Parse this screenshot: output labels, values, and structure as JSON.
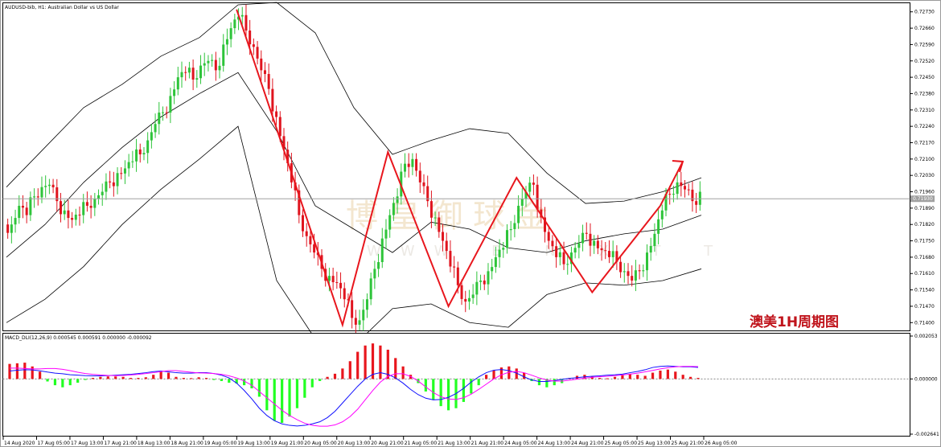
{
  "header": {
    "symbol_line": "AUDUSD-bib, H1:  Australian Dollar vs US Dollar",
    "macd_line": "MACD_DLI(12,26,9) 0.000545 0.000591 0.000000 -0.000092"
  },
  "annotation": "澳美1H周期图",
  "watermark": {
    "brand": "博 皇 御 球 金",
    "letters": "WWW B N X T T"
  },
  "colors": {
    "bull": "#2ec43a",
    "bear": "#e0141e",
    "zigzag": "#e8161d",
    "bands": "#000000",
    "macd_line": "#1010ff",
    "signal_line": "#ff00ff",
    "hist_pos": "#e8161d",
    "hist_neg": "#22ff22"
  },
  "current_price_label": "0.71930",
  "chart_data": [
    {
      "type": "candlestick",
      "title": "AUDUSD-bib, H1:  Australian Dollar vs US Dollar",
      "y_ticks": [
        "0.72730",
        "0.72660",
        "0.72590",
        "0.72520",
        "0.72450",
        "0.72380",
        "0.72310",
        "0.72240",
        "0.72170",
        "0.72100",
        "0.72030",
        "0.71960",
        "0.71890",
        "0.71820",
        "0.71750",
        "0.71680",
        "0.71610",
        "0.71540",
        "0.71470",
        "0.71400"
      ],
      "ylim": [
        0.7137,
        0.7276
      ],
      "current_price": 0.7193,
      "x_ticks": [
        "14 Aug 2020",
        "17 Aug 05:00",
        "17 Aug 13:00",
        "17 Aug 21:00",
        "18 Aug 13:00",
        "18 Aug 21:00",
        "19 Aug 05:00",
        "19 Aug 13:00",
        "19 Aug 21:00",
        "20 Aug 05:00",
        "20 Aug 13:00",
        "20 Aug 21:00",
        "21 Aug 05:00",
        "21 Aug 13:00",
        "21 Aug 21:00",
        "24 Aug 05:00",
        "24 Aug 13:00",
        "24 Aug 21:00",
        "25 Aug 05:00",
        "25 Aug 13:00",
        "25 Aug 21:00",
        "26 Aug 05:00"
      ],
      "path_close": [
        0.7182,
        0.719,
        0.7186,
        0.7194,
        0.7198,
        0.7199,
        0.7192,
        0.7188,
        0.7184,
        0.7186,
        0.719,
        0.7193,
        0.7196,
        0.72,
        0.7204,
        0.7206,
        0.7209,
        0.7212,
        0.7218,
        0.7225,
        0.723,
        0.7237,
        0.7245,
        0.7247,
        0.7244,
        0.725,
        0.7252,
        0.7248,
        0.7259,
        0.7266,
        0.7271,
        0.7265,
        0.7258,
        0.7248,
        0.724,
        0.7228,
        0.7214,
        0.72,
        0.7186,
        0.7177,
        0.717,
        0.7163,
        0.716,
        0.7157,
        0.715,
        0.7142,
        0.7141,
        0.715,
        0.7163,
        0.7176,
        0.7186,
        0.7194,
        0.7208,
        0.721,
        0.72,
        0.7192,
        0.7185,
        0.7175,
        0.7164,
        0.7156,
        0.7149,
        0.7152,
        0.7158,
        0.7162,
        0.7168,
        0.7172,
        0.718,
        0.719,
        0.7196,
        0.7199,
        0.7185,
        0.7175,
        0.7168,
        0.7165,
        0.717,
        0.7174,
        0.7178,
        0.7175,
        0.7171,
        0.7168,
        0.7166,
        0.7162,
        0.7158,
        0.7162,
        0.717,
        0.7178,
        0.7188,
        0.7195,
        0.72,
        0.7197,
        0.7192,
        0.7196
      ],
      "bands": [
        {
          "name": "upper",
          "values": [
            0.7198,
            0.7215,
            0.7232,
            0.7242,
            0.7254,
            0.7262,
            0.7276,
            0.7277,
            0.7264,
            0.7232,
            0.7212,
            0.7218,
            0.7223,
            0.7221,
            0.7204,
            0.7191,
            0.7192,
            0.7196,
            0.7202
          ]
        },
        {
          "name": "middle",
          "values": [
            0.7168,
            0.7182,
            0.72,
            0.7215,
            0.7228,
            0.7238,
            0.7247,
            0.7222,
            0.719,
            0.718,
            0.717,
            0.7183,
            0.718,
            0.7172,
            0.717,
            0.7175,
            0.7178,
            0.718,
            0.7186
          ]
        },
        {
          "name": "lower",
          "values": [
            0.714,
            0.715,
            0.7164,
            0.7182,
            0.7197,
            0.721,
            0.7224,
            0.7158,
            0.7133,
            0.713,
            0.7146,
            0.7148,
            0.714,
            0.7138,
            0.7152,
            0.7157,
            0.7156,
            0.7158,
            0.7163
          ]
        }
      ],
      "zigzag": [
        [
          30,
          0.7274
        ],
        [
          44,
          0.7139
        ],
        [
          50,
          0.7213
        ],
        [
          58,
          0.7147
        ],
        [
          67,
          0.7202
        ],
        [
          77,
          0.7153
        ],
        [
          86,
          0.719
        ]
      ]
    },
    {
      "type": "macd",
      "title": "MACD_DLI(12,26,9) 0.000545 0.000591 0.000000 -0.000092",
      "y_ticks": [
        "0.002053",
        "0.000000",
        "-0.002641"
      ],
      "ylim": [
        -0.002641,
        0.002053
      ],
      "histogram": [
        0.00072,
        0.00075,
        0.00078,
        0.0006,
        0.00035,
        -0.00012,
        -0.0003,
        -0.0004,
        -0.0003,
        -0.00018,
        -5e-05,
        5e-05,
        0.0001,
        0.00012,
        0.00012,
        0.0001,
        5e-05,
        5e-05,
        8e-05,
        0.0002,
        0.00038,
        0.0003,
        0.0001,
        5e-05,
        4e-05,
        8e-05,
        5e-05,
        -5e-05,
        -0.0001,
        -0.00018,
        -0.00022,
        -0.0003,
        -0.00045,
        -0.00085,
        -0.0015,
        -0.002,
        -0.0021,
        -0.0018,
        -0.0014,
        -0.0009,
        -0.0004,
        -0.0001,
        0.0001,
        0.00025,
        0.0005,
        0.00085,
        0.0013,
        0.0016,
        0.0017,
        0.0016,
        0.0014,
        0.001,
        0.0006,
        0.0002,
        -0.0002,
        -0.0006,
        -0.001,
        -0.0013,
        -0.0015,
        -0.0014,
        -0.0011,
        -0.0007,
        -0.0003,
        0.0002,
        0.0004,
        0.00055,
        0.0006,
        0.0005,
        0.0003,
        -0.0001,
        -0.0003,
        -0.0004,
        -0.0003,
        -0.0002,
        5e-05,
        0.00015,
        0.0002,
        0.00012,
        5e-05,
        3e-05,
        0.0001,
        0.00018,
        0.00025,
        0.0002,
        0.00015,
        0.0003,
        0.0004,
        0.00045,
        0.00035,
        0.0002,
        0.0001,
        5e-05
      ],
      "macd": [
        0.00038,
        0.00042,
        0.00044,
        0.00043,
        0.00039,
        0.00033,
        0.00028,
        0.00025,
        0.0002,
        0.00018,
        0.00016,
        0.00015,
        0.00015,
        0.00016,
        0.00018,
        0.0002,
        0.00022,
        0.00026,
        0.0003,
        0.00035,
        0.00038,
        0.00034,
        0.0003,
        0.00028,
        0.00028,
        0.0003,
        0.0003,
        0.00026,
        0.00018,
        5e-05,
        -0.0002,
        -0.00055,
        -0.00095,
        -0.0014,
        -0.00175,
        -0.002,
        -0.00215,
        -0.00222,
        -0.00225,
        -0.00222,
        -0.00215,
        -0.00205,
        -0.00185,
        -0.00155,
        -0.00115,
        -0.00075,
        -0.00035,
        0.0,
        0.00022,
        0.0003,
        0.00022,
        5e-05,
        -0.0002,
        -0.0005,
        -0.00075,
        -0.00092,
        -0.001,
        -0.00098,
        -0.00088,
        -0.0007,
        -0.00045,
        -0.00015,
        0.0001,
        0.0003,
        0.00042,
        0.00045,
        0.0004,
        0.00028,
        0.0001,
        -5e-05,
        -0.00012,
        -0.00012,
        -8e-05,
        -2e-05,
        3e-05,
        6e-05,
        0.0001,
        0.00013,
        0.00015,
        0.00018,
        0.0002,
        0.00023,
        0.0003,
        0.00036,
        0.00044,
        0.00055,
        0.0006,
        0.00062,
        0.0006,
        0.00058,
        0.00058,
        0.00055
      ],
      "signal": [
        0.00052,
        0.00052,
        0.0005,
        0.00048,
        0.00048,
        0.0005,
        0.0005,
        0.00046,
        0.0004,
        0.00032,
        0.00026,
        0.00022,
        0.00019,
        0.00017,
        0.00016,
        0.00017,
        0.00019,
        0.00022,
        0.00026,
        0.0003,
        0.00035,
        0.0004,
        0.0004,
        0.00036,
        0.00032,
        0.00029,
        0.00028,
        0.00026,
        0.00022,
        0.00015,
        5e-05,
        -0.0001,
        -0.0003,
        -0.0006,
        -0.0009,
        -0.0012,
        -0.0015,
        -0.00175,
        -0.00195,
        -0.00212,
        -0.00222,
        -0.00226,
        -0.00226,
        -0.0022,
        -0.00205,
        -0.0018,
        -0.00145,
        -0.001,
        -0.00055,
        -0.00015,
        0.00012,
        0.00025,
        0.00025,
        0.00012,
        -0.0001,
        -0.00038,
        -0.00065,
        -0.00085,
        -0.00096,
        -0.00098,
        -0.0009,
        -0.00073,
        -0.0005,
        -0.00025,
        0.0,
        0.0002,
        0.00032,
        0.00036,
        0.0003,
        0.00018,
        5e-05,
        -5e-05,
        -0.0001,
        -0.0001,
        -6e-05,
        -1e-05,
        4e-05,
        8e-05,
        0.00011,
        0.00013,
        0.00016,
        0.00019,
        0.00023,
        0.00028,
        0.00034,
        0.00041,
        0.00048,
        0.00054,
        0.00058,
        0.0006,
        0.0006,
        0.00059
      ]
    }
  ]
}
